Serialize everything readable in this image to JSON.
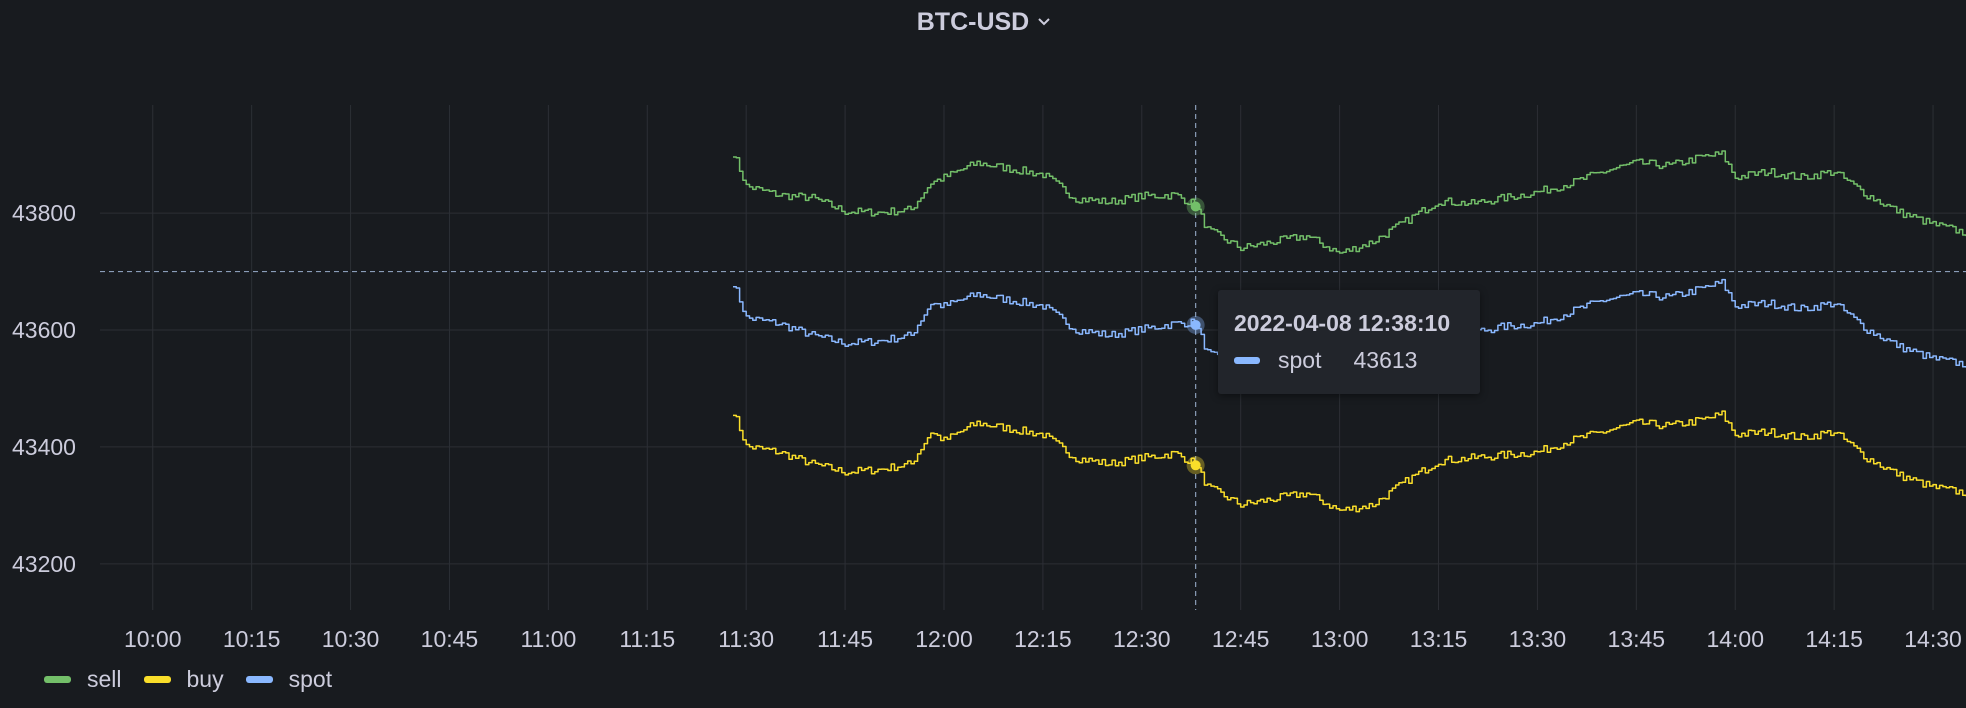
{
  "panel": {
    "title": "BTC-USD",
    "title_menu_icon": "chevron-down-icon"
  },
  "colors": {
    "background": "#181b1f",
    "sell": "#73bf69",
    "buy": "#fade2a",
    "spot": "#8ab8ff",
    "grid": "#2c2f35",
    "text": "#ccccdc"
  },
  "tooltip": {
    "time": "2022-04-08 12:38:10",
    "series_name": "spot",
    "value": "43613"
  },
  "crosshair": {
    "time": "12:38:10",
    "value": 43700
  },
  "chart_data": {
    "type": "line",
    "x_axis": {
      "ticks": [
        "10:00",
        "10:15",
        "10:30",
        "10:45",
        "11:00",
        "11:15",
        "11:30",
        "11:45",
        "12:00",
        "12:15",
        "12:30",
        "12:45",
        "13:00",
        "13:15",
        "13:30",
        "13:45",
        "14:00",
        "14:15",
        "14:30"
      ],
      "range": [
        "09:52",
        "14:35"
      ]
    },
    "y_axis": {
      "ticks": [
        43200,
        43400,
        43600,
        43800
      ],
      "range": [
        43121,
        43985
      ]
    },
    "grid": true,
    "legend_position": "bottom-left",
    "x": [
      "11:28",
      "11:30",
      "11:35",
      "11:40",
      "11:45",
      "11:50",
      "11:55",
      "11:58",
      "12:00",
      "12:05",
      "12:10",
      "12:15",
      "12:20",
      "12:25",
      "12:30",
      "12:35",
      "12:38",
      "12:40",
      "12:45",
      "12:50",
      "12:55",
      "13:00",
      "13:05",
      "13:10",
      "13:15",
      "13:20",
      "13:25",
      "13:30",
      "13:35",
      "13:40",
      "13:45",
      "13:50",
      "13:55",
      "13:58",
      "14:00",
      "14:05",
      "14:10",
      "14:15",
      "14:20",
      "14:25",
      "14:30",
      "14:35"
    ],
    "series": [
      {
        "name": "sell",
        "color": "#73bf69",
        "values": [
          43903,
          43846,
          43831,
          43826,
          43803,
          43801,
          43806,
          43852,
          43861,
          43886,
          43876,
          43866,
          43825,
          43819,
          43829,
          43831,
          43815,
          43771,
          43740,
          43751,
          43761,
          43731,
          43751,
          43786,
          43821,
          43816,
          43826,
          43836,
          43851,
          43871,
          43886,
          43881,
          43896,
          43901,
          43861,
          43871,
          43861,
          43871,
          43831,
          43801,
          43781,
          43766
        ]
      },
      {
        "name": "buy",
        "color": "#fade2a",
        "values": [
          43461,
          43401,
          43391,
          43371,
          43357,
          43361,
          43371,
          43426,
          43411,
          43441,
          43431,
          43421,
          43381,
          43371,
          43381,
          43389,
          43372,
          43331,
          43301,
          43311,
          43321,
          43291,
          43301,
          43341,
          43376,
          43381,
          43386,
          43391,
          43411,
          43426,
          43441,
          43436,
          43446,
          43456,
          43421,
          43426,
          43416,
          43426,
          43381,
          43351,
          43331,
          43321
        ]
      },
      {
        "name": "spot",
        "color": "#8ab8ff",
        "values": [
          43681,
          43621,
          43611,
          43591,
          43577,
          43581,
          43591,
          43646,
          43641,
          43661,
          43651,
          43641,
          43601,
          43591,
          43601,
          43611,
          43613,
          43561,
          43531,
          43541,
          43551,
          43521,
          43531,
          43566,
          43601,
          43596,
          43606,
          43611,
          43631,
          43651,
          43661,
          43656,
          43671,
          43681,
          43641,
          43646,
          43636,
          43646,
          43601,
          43571,
          43551,
          43541
        ]
      }
    ]
  }
}
